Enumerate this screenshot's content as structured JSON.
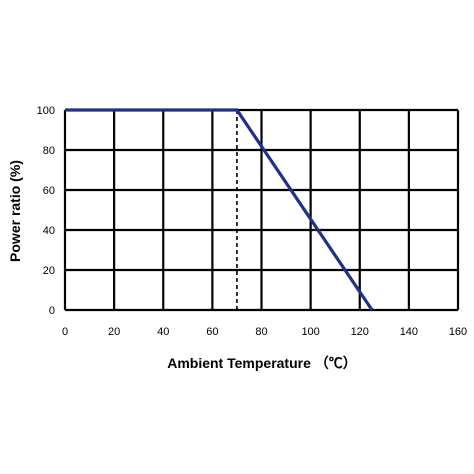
{
  "chart_data": {
    "type": "line",
    "title": "",
    "xlabel": "Ambient Temperature （℃）",
    "ylabel": "Power ratio (%)",
    "xlim": [
      0,
      160
    ],
    "ylim": [
      0,
      100
    ],
    "xticks": [
      0,
      20,
      40,
      60,
      80,
      100,
      120,
      140,
      160
    ],
    "yticks": [
      0,
      20,
      40,
      60,
      80,
      100
    ],
    "grid": true,
    "series": [
      {
        "x": [
          0,
          70,
          125
        ],
        "y": [
          100,
          100,
          0
        ],
        "color": "#1f2f8a"
      }
    ],
    "reference_lines": [
      {
        "orientation": "vertical",
        "x": 70,
        "style": "dashed"
      }
    ]
  }
}
